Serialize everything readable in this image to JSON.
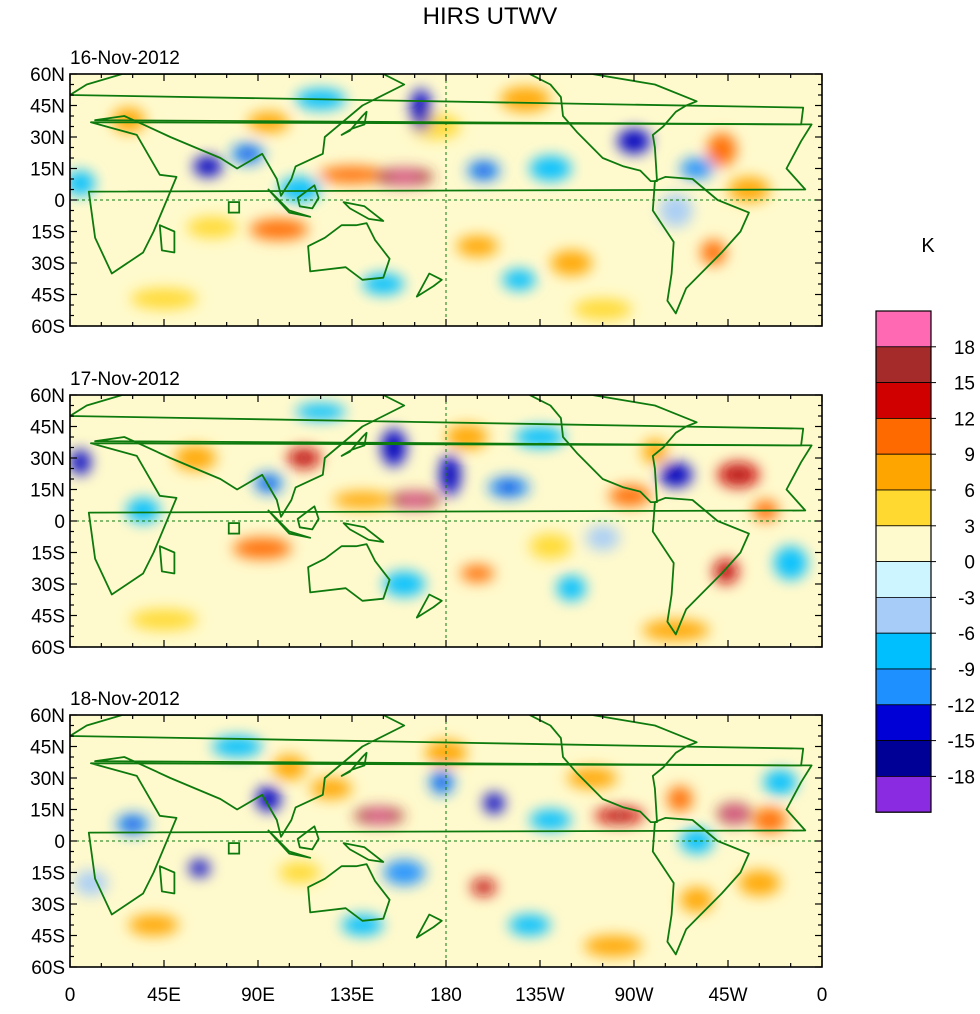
{
  "chart_data": {
    "type": "heatmap",
    "title": "HIRS UTWV",
    "variable": "UTWV",
    "units": "K",
    "x_ticks": [
      "0",
      "45E",
      "90E",
      "135E",
      "180",
      "135W",
      "90W",
      "45W",
      "0"
    ],
    "x_values": [
      0,
      45,
      90,
      135,
      180,
      225,
      270,
      315,
      360
    ],
    "y_ticks": [
      "60N",
      "45N",
      "30N",
      "15N",
      "0",
      "15S",
      "30S",
      "45S",
      "60S"
    ],
    "y_values": [
      60,
      45,
      30,
      15,
      0,
      -15,
      -30,
      -45,
      -60
    ],
    "xlim": [
      0,
      360
    ],
    "ylim": [
      -60,
      60
    ],
    "panels": [
      {
        "date": "16-Nov-2012",
        "features": [
          {
            "lon": 160,
            "lat": 11,
            "value": 16,
            "rx": 14,
            "ry": 4
          },
          {
            "lon": 135,
            "lat": 12,
            "value": 9,
            "rx": 16,
            "ry": 4
          },
          {
            "lon": 100,
            "lat": -14,
            "value": 10,
            "rx": 14,
            "ry": 5
          },
          {
            "lon": 68,
            "lat": -13,
            "value": 4,
            "rx": 12,
            "ry": 5
          },
          {
            "lon": 312,
            "lat": 24,
            "value": 11,
            "rx": 7,
            "ry": 8
          },
          {
            "lon": 325,
            "lat": 5,
            "value": 6,
            "rx": 10,
            "ry": 6
          },
          {
            "lon": 308,
            "lat": -25,
            "value": 10,
            "rx": 6,
            "ry": 6
          },
          {
            "lon": 95,
            "lat": 37,
            "value": 8,
            "rx": 10,
            "ry": 5
          },
          {
            "lon": 28,
            "lat": 38,
            "value": 6,
            "rx": 8,
            "ry": 6
          },
          {
            "lon": 218,
            "lat": 48,
            "value": 7,
            "rx": 12,
            "ry": 6
          },
          {
            "lon": 175,
            "lat": 35,
            "value": 5,
            "rx": 12,
            "ry": 6
          },
          {
            "lon": 195,
            "lat": -22,
            "value": 6,
            "rx": 10,
            "ry": 5
          },
          {
            "lon": 240,
            "lat": -30,
            "value": 7,
            "rx": 10,
            "ry": 6
          },
          {
            "lon": 45,
            "lat": -47,
            "value": 5,
            "rx": 16,
            "ry": 5
          },
          {
            "lon": 255,
            "lat": -52,
            "value": 5,
            "rx": 14,
            "ry": 5
          },
          {
            "lon": 168,
            "lat": 43,
            "value": -14,
            "rx": 5,
            "ry": 10
          },
          {
            "lon": 270,
            "lat": 28,
            "value": -14,
            "rx": 8,
            "ry": 6
          },
          {
            "lon": 198,
            "lat": 14,
            "value": -12,
            "rx": 8,
            "ry": 5
          },
          {
            "lon": 66,
            "lat": 16,
            "value": -14,
            "rx": 7,
            "ry": 5
          },
          {
            "lon": 85,
            "lat": 22,
            "value": -12,
            "rx": 8,
            "ry": 5
          },
          {
            "lon": 300,
            "lat": 15,
            "value": -10,
            "rx": 8,
            "ry": 5
          },
          {
            "lon": 120,
            "lat": 48,
            "value": -7,
            "rx": 12,
            "ry": 5
          },
          {
            "lon": 5,
            "lat": 8,
            "value": -9,
            "rx": 7,
            "ry": 6
          },
          {
            "lon": 230,
            "lat": 15,
            "value": -8,
            "rx": 10,
            "ry": 6
          },
          {
            "lon": 215,
            "lat": -38,
            "value": -9,
            "rx": 8,
            "ry": 5
          },
          {
            "lon": 150,
            "lat": -40,
            "value": -8,
            "rx": 10,
            "ry": 5
          },
          {
            "lon": 110,
            "lat": 5,
            "value": -8,
            "rx": 10,
            "ry": 6
          },
          {
            "lon": 290,
            "lat": -5,
            "value": -6,
            "rx": 8,
            "ry": 8
          }
        ]
      },
      {
        "date": "17-Nov-2012",
        "features": [
          {
            "lon": 165,
            "lat": 10,
            "value": 16,
            "rx": 12,
            "ry": 4
          },
          {
            "lon": 140,
            "lat": 10,
            "value": 8,
            "rx": 14,
            "ry": 4
          },
          {
            "lon": 112,
            "lat": 30,
            "value": 12,
            "rx": 8,
            "ry": 5
          },
          {
            "lon": 92,
            "lat": -13,
            "value": 11,
            "rx": 14,
            "ry": 5
          },
          {
            "lon": 320,
            "lat": 22,
            "value": 14,
            "rx": 10,
            "ry": 6
          },
          {
            "lon": 333,
            "lat": 5,
            "value": 11,
            "rx": 6,
            "ry": 5
          },
          {
            "lon": 314,
            "lat": -24,
            "value": 12,
            "rx": 6,
            "ry": 6
          },
          {
            "lon": 268,
            "lat": 12,
            "value": 10,
            "rx": 10,
            "ry": 5
          },
          {
            "lon": 195,
            "lat": -25,
            "value": 10,
            "rx": 8,
            "ry": 4
          },
          {
            "lon": 280,
            "lat": 33,
            "value": 8,
            "rx": 6,
            "ry": 6
          },
          {
            "lon": 190,
            "lat": 40,
            "value": 7,
            "rx": 10,
            "ry": 6
          },
          {
            "lon": 60,
            "lat": 30,
            "value": 6,
            "rx": 10,
            "ry": 6
          },
          {
            "lon": 45,
            "lat": -47,
            "value": 5,
            "rx": 16,
            "ry": 5
          },
          {
            "lon": 290,
            "lat": -52,
            "value": 6,
            "rx": 16,
            "ry": 5
          },
          {
            "lon": 230,
            "lat": -12,
            "value": 5,
            "rx": 10,
            "ry": 6
          },
          {
            "lon": 182,
            "lat": 22,
            "value": -14,
            "rx": 5,
            "ry": 10
          },
          {
            "lon": 155,
            "lat": 35,
            "value": -14,
            "rx": 6,
            "ry": 9
          },
          {
            "lon": 290,
            "lat": 22,
            "value": -14,
            "rx": 8,
            "ry": 6
          },
          {
            "lon": 95,
            "lat": 18,
            "value": -12,
            "rx": 7,
            "ry": 5
          },
          {
            "lon": 5,
            "lat": 28,
            "value": -14,
            "rx": 5,
            "ry": 6
          },
          {
            "lon": 210,
            "lat": 16,
            "value": -12,
            "rx": 10,
            "ry": 5
          },
          {
            "lon": 225,
            "lat": 40,
            "value": -8,
            "rx": 12,
            "ry": 5
          },
          {
            "lon": 345,
            "lat": -20,
            "value": -9,
            "rx": 8,
            "ry": 8
          },
          {
            "lon": 240,
            "lat": -32,
            "value": -9,
            "rx": 7,
            "ry": 6
          },
          {
            "lon": 120,
            "lat": 52,
            "value": -8,
            "rx": 12,
            "ry": 4
          },
          {
            "lon": 35,
            "lat": 5,
            "value": -8,
            "rx": 8,
            "ry": 6
          },
          {
            "lon": 160,
            "lat": -30,
            "value": -7,
            "rx": 10,
            "ry": 6
          },
          {
            "lon": 255,
            "lat": -8,
            "value": -6,
            "rx": 8,
            "ry": 6
          }
        ]
      },
      {
        "date": "18-Nov-2012",
        "features": [
          {
            "lon": 148,
            "lat": 12,
            "value": 15,
            "rx": 12,
            "ry": 4
          },
          {
            "lon": 198,
            "lat": -22,
            "value": 14,
            "rx": 6,
            "ry": 4
          },
          {
            "lon": 318,
            "lat": 13,
            "value": 16,
            "rx": 8,
            "ry": 5
          },
          {
            "lon": 263,
            "lat": 12,
            "value": 12,
            "rx": 12,
            "ry": 4
          },
          {
            "lon": 292,
            "lat": 20,
            "value": 10,
            "rx": 6,
            "ry": 6
          },
          {
            "lon": 335,
            "lat": 10,
            "value": 9,
            "rx": 8,
            "ry": 6
          },
          {
            "lon": 125,
            "lat": 25,
            "value": 8,
            "rx": 10,
            "ry": 5
          },
          {
            "lon": 105,
            "lat": 35,
            "value": 7,
            "rx": 8,
            "ry": 6
          },
          {
            "lon": 250,
            "lat": 30,
            "value": 6,
            "rx": 12,
            "ry": 5
          },
          {
            "lon": 300,
            "lat": -28,
            "value": 7,
            "rx": 8,
            "ry": 6
          },
          {
            "lon": 330,
            "lat": -20,
            "value": 6,
            "rx": 10,
            "ry": 6
          },
          {
            "lon": 110,
            "lat": -15,
            "value": 5,
            "rx": 10,
            "ry": 5
          },
          {
            "lon": 40,
            "lat": -40,
            "value": 6,
            "rx": 12,
            "ry": 5
          },
          {
            "lon": 260,
            "lat": -50,
            "value": 7,
            "rx": 14,
            "ry": 5
          },
          {
            "lon": 180,
            "lat": 42,
            "value": 6,
            "rx": 10,
            "ry": 6
          },
          {
            "lon": 62,
            "lat": -13,
            "value": -14,
            "rx": 5,
            "ry": 4
          },
          {
            "lon": 95,
            "lat": 20,
            "value": -14,
            "rx": 6,
            "ry": 6
          },
          {
            "lon": 203,
            "lat": 18,
            "value": -14,
            "rx": 5,
            "ry": 5
          },
          {
            "lon": 178,
            "lat": 28,
            "value": -12,
            "rx": 6,
            "ry": 6
          },
          {
            "lon": 30,
            "lat": 8,
            "value": -12,
            "rx": 8,
            "ry": 5
          },
          {
            "lon": 160,
            "lat": -15,
            "value": -10,
            "rx": 10,
            "ry": 6
          },
          {
            "lon": 230,
            "lat": 10,
            "value": -8,
            "rx": 10,
            "ry": 5
          },
          {
            "lon": 340,
            "lat": 28,
            "value": -9,
            "rx": 8,
            "ry": 6
          },
          {
            "lon": 220,
            "lat": -40,
            "value": -8,
            "rx": 10,
            "ry": 5
          },
          {
            "lon": 80,
            "lat": 45,
            "value": -7,
            "rx": 12,
            "ry": 5
          },
          {
            "lon": 140,
            "lat": -40,
            "value": -7,
            "rx": 10,
            "ry": 5
          },
          {
            "lon": 300,
            "lat": 0,
            "value": -8,
            "rx": 8,
            "ry": 6
          },
          {
            "lon": 10,
            "lat": -20,
            "value": -6,
            "rx": 8,
            "ry": 6
          }
        ]
      }
    ],
    "colorbar": {
      "levels": [
        18,
        15,
        12,
        9,
        6,
        3,
        0,
        -3,
        -6,
        -9,
        -12,
        -15,
        -18
      ],
      "colors": [
        "#FF69B4",
        "#A52A2A",
        "#D10000",
        "#FF6A00",
        "#FFA500",
        "#FFD92F",
        "#FFFACD",
        "#CDF5FF",
        "#A6CCF7",
        "#00BFFF",
        "#1E90FF",
        "#0000D6",
        "#000096",
        "#8A2BE2"
      ]
    },
    "map_style": {
      "coastline_color": "#0E7A0E",
      "grid_color": "#0E7A0E",
      "frame_color": "#000000"
    }
  }
}
